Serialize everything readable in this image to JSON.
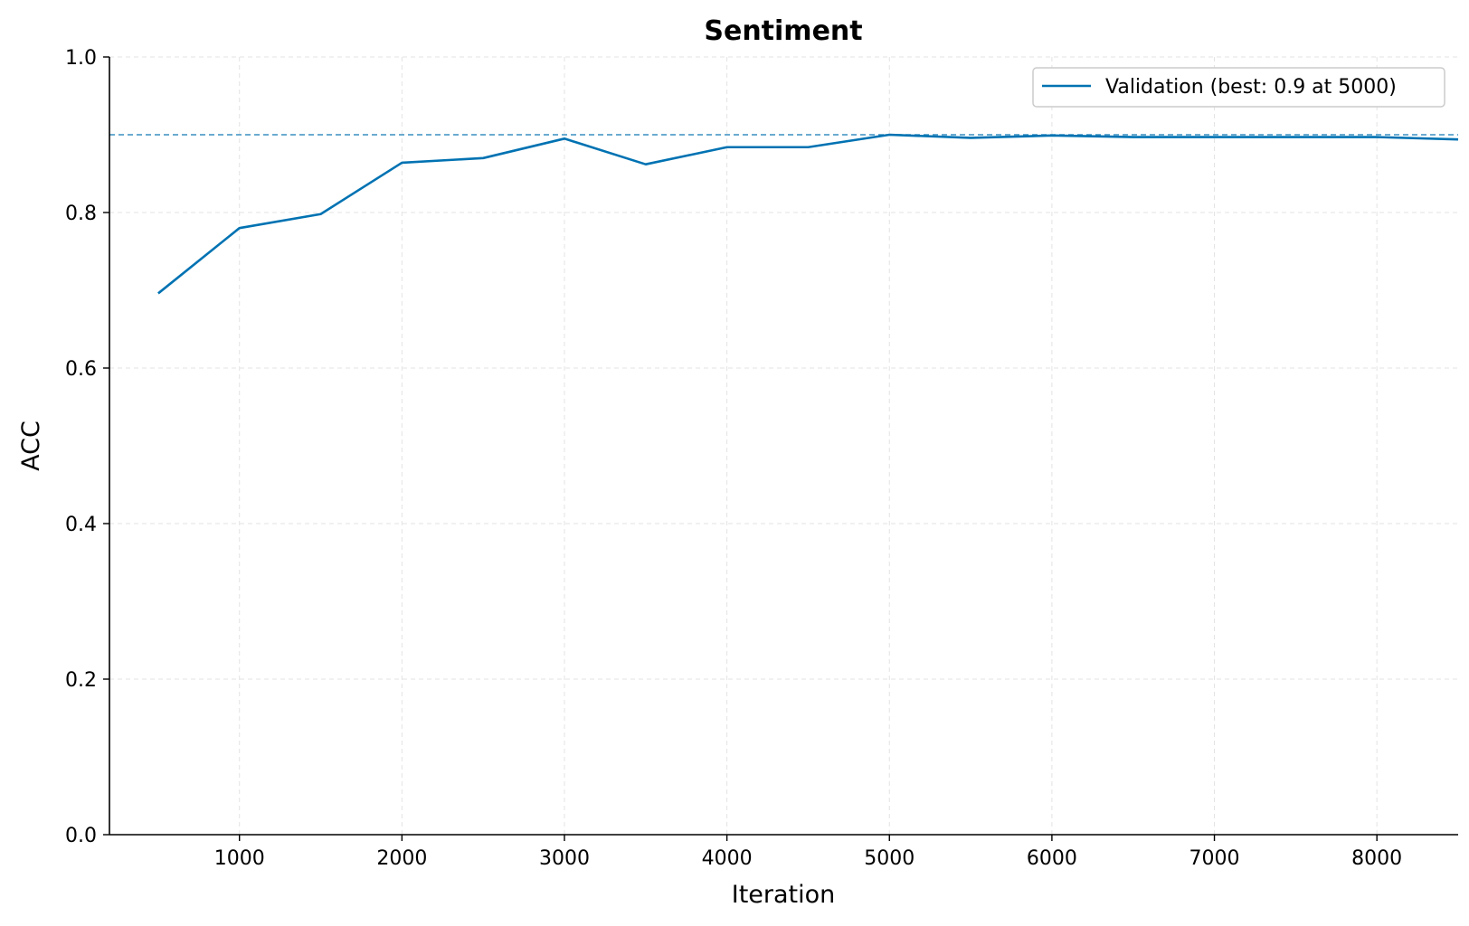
{
  "chart_data": {
    "type": "line",
    "title": "Sentiment",
    "xlabel": "Iteration",
    "ylabel": "ACC",
    "xlim": [
      200,
      8500
    ],
    "ylim": [
      0.0,
      1.0
    ],
    "xticks": [
      1000,
      2000,
      3000,
      4000,
      5000,
      6000,
      7000,
      8000
    ],
    "xtick_labels": [
      "1000",
      "2000",
      "3000",
      "4000",
      "5000",
      "6000",
      "7000",
      "8000"
    ],
    "yticks": [
      0.0,
      0.2,
      0.4,
      0.6,
      0.8,
      1.0
    ],
    "ytick_labels": [
      "0.0",
      "0.2",
      "0.4",
      "0.6",
      "0.8",
      "1.0"
    ],
    "grid": true,
    "legend_position": "top-right",
    "series": [
      {
        "name": "Validation (best: 0.9 at 5000)",
        "color": "#0072b2",
        "x": [
          500,
          1000,
          1500,
          2000,
          2500,
          3000,
          3500,
          4000,
          4500,
          5000,
          5500,
          6000,
          6500,
          7000,
          7500,
          8000,
          8500
        ],
        "y": [
          0.696,
          0.78,
          0.798,
          0.864,
          0.87,
          0.895,
          0.862,
          0.884,
          0.884,
          0.9,
          0.896,
          0.899,
          0.897,
          0.897,
          0.897,
          0.897,
          0.894
        ]
      }
    ],
    "reference_line": {
      "y": 0.9,
      "style": "dashed",
      "color": "#3a8fc0"
    }
  }
}
